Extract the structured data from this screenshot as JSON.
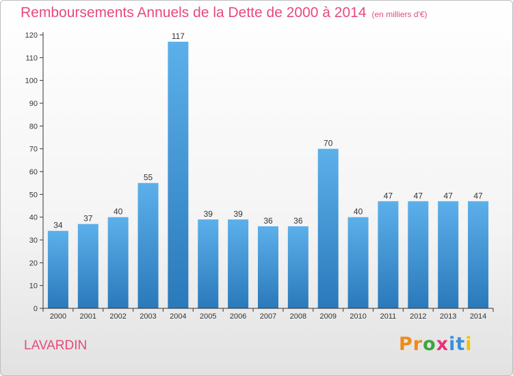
{
  "chart_data": {
    "type": "bar",
    "title": "Remboursements Annuels de la Dette de 2000 à 2014",
    "subtitle": "(en milliers d'€)",
    "xlabel": "",
    "ylabel": "",
    "categories": [
      "2000",
      "2001",
      "2002",
      "2003",
      "2004",
      "2005",
      "2006",
      "2007",
      "2008",
      "2009",
      "2010",
      "2011",
      "2012",
      "2013",
      "2014"
    ],
    "values": [
      34,
      37,
      40,
      55,
      117,
      39,
      39,
      36,
      36,
      70,
      40,
      47,
      47,
      47,
      47
    ],
    "ylim": [
      0,
      120
    ],
    "yticks": [
      0,
      10,
      20,
      30,
      40,
      50,
      60,
      70,
      80,
      90,
      100,
      110,
      120
    ],
    "grid": false,
    "bar_color": "#3d95d6",
    "data_labels": true
  },
  "place": "LAVARDIN",
  "logo": {
    "letters": [
      "P",
      "r",
      "o",
      "x",
      "i",
      "t",
      "i"
    ],
    "colors": [
      "#ef8a1e",
      "#ef8a1e",
      "#3aa63a",
      "#e8327a",
      "#3a8fd6",
      "#3a8fd6",
      "#f2c200"
    ]
  },
  "colors": {
    "title": "#e8497a",
    "axis": "#333333",
    "tick_label": "#333333"
  }
}
